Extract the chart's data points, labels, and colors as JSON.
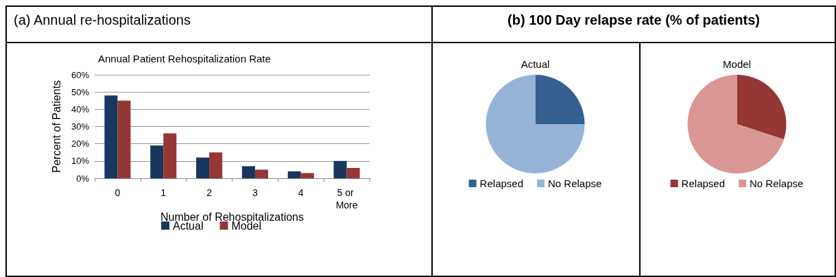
{
  "chart_data": [
    {
      "type": "bar",
      "title": "(a) Annual re-hospitalizations",
      "subtitle": "Annual Patient Rehospitalization Rate",
      "xlabel": "Number of Rehospitalizations",
      "ylabel": "Percent of Patients",
      "categories": [
        "0",
        "1",
        "2",
        "3",
        "4",
        "5 or More"
      ],
      "series": [
        {
          "name": "Actual",
          "color": "#17375e",
          "values": [
            48,
            19,
            12,
            7,
            4,
            10
          ]
        },
        {
          "name": "Model",
          "color": "#953735",
          "values": [
            45,
            26,
            15,
            5,
            3,
            6
          ]
        }
      ],
      "ylim": [
        0,
        60
      ],
      "yticks": [
        {
          "value": 0,
          "label": "0%"
        },
        {
          "value": 10,
          "label": "10%"
        },
        {
          "value": 20,
          "label": "20%"
        },
        {
          "value": 30,
          "label": "30%"
        },
        {
          "value": 40,
          "label": "40%"
        },
        {
          "value": 50,
          "label": "50%"
        },
        {
          "value": 60,
          "label": "60%"
        }
      ],
      "grid": "y",
      "legend": "bottom"
    },
    {
      "type": "pie",
      "title": "(b) 100 Day relapse rate (% of patients)",
      "subtitle": "Actual",
      "categories": [
        "Relapsed",
        "No Relapse"
      ],
      "values": [
        25,
        75
      ],
      "colors": [
        "#366092",
        "#95b3d7"
      ],
      "legend": "bottom"
    },
    {
      "type": "pie",
      "subtitle": "Model",
      "categories": [
        "Relapsed",
        "No Relapse"
      ],
      "values": [
        30,
        70
      ],
      "colors": [
        "#953735",
        "#da9694"
      ],
      "legend": "bottom"
    }
  ]
}
